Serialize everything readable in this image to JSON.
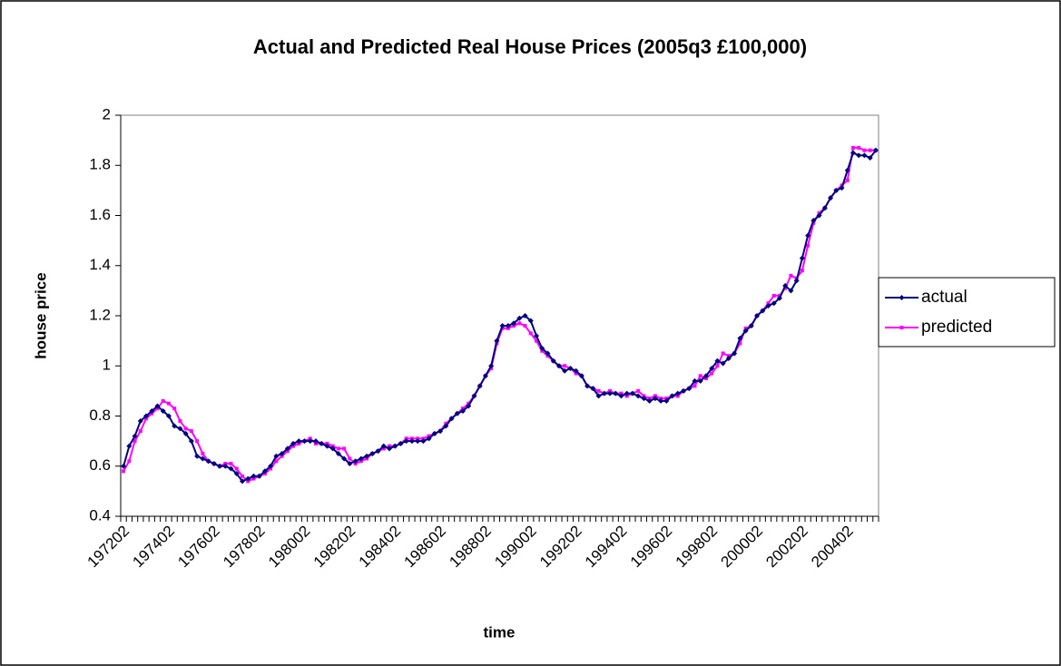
{
  "chart_data": {
    "type": "line",
    "title": "Actual and Predicted Real House Prices (2005q3 £100,000)",
    "x_label": "time",
    "y_label": "house price",
    "categories": [
      "197202",
      null,
      null,
      null,
      null,
      null,
      null,
      null,
      "197402",
      null,
      null,
      null,
      null,
      null,
      null,
      null,
      "197602",
      null,
      null,
      null,
      null,
      null,
      null,
      null,
      "197802",
      null,
      null,
      null,
      null,
      null,
      null,
      null,
      "198002",
      null,
      null,
      null,
      null,
      null,
      null,
      null,
      "198202",
      null,
      null,
      null,
      null,
      null,
      null,
      null,
      "198402",
      null,
      null,
      null,
      null,
      null,
      null,
      null,
      "198602",
      null,
      null,
      null,
      null,
      null,
      null,
      null,
      "198802",
      null,
      null,
      null,
      null,
      null,
      null,
      null,
      "199002",
      null,
      null,
      null,
      null,
      null,
      null,
      null,
      "199202",
      null,
      null,
      null,
      null,
      null,
      null,
      null,
      "199402",
      null,
      null,
      null,
      null,
      null,
      null,
      null,
      "199602",
      null,
      null,
      null,
      null,
      null,
      null,
      null,
      "199802",
      null,
      null,
      null,
      null,
      null,
      null,
      null,
      "200002",
      null,
      null,
      null,
      null,
      null,
      null,
      null,
      "200202",
      null,
      null,
      null,
      null,
      null,
      null,
      null,
      "200402",
      null,
      null,
      null,
      null,
      null
    ],
    "series": [
      {
        "name": "actual",
        "color": "#000080",
        "values": [
          0.6,
          0.68,
          0.72,
          0.78,
          0.8,
          0.82,
          0.84,
          0.82,
          0.8,
          0.76,
          0.75,
          0.73,
          0.7,
          0.64,
          0.63,
          0.62,
          0.61,
          0.6,
          0.6,
          0.59,
          0.57,
          0.54,
          0.55,
          0.56,
          0.56,
          0.58,
          0.6,
          0.64,
          0.65,
          0.67,
          0.69,
          0.7,
          0.7,
          0.7,
          0.7,
          0.69,
          0.68,
          0.67,
          0.65,
          0.63,
          0.61,
          0.62,
          0.63,
          0.64,
          0.65,
          0.66,
          0.68,
          0.67,
          0.68,
          0.69,
          0.7,
          0.7,
          0.7,
          0.7,
          0.71,
          0.73,
          0.74,
          0.76,
          0.79,
          0.81,
          0.82,
          0.84,
          0.88,
          0.92,
          0.96,
          1.0,
          1.1,
          1.16,
          1.16,
          1.17,
          1.19,
          1.2,
          1.18,
          1.12,
          1.07,
          1.05,
          1.02,
          1.0,
          0.98,
          0.99,
          0.98,
          0.96,
          0.92,
          0.91,
          0.88,
          0.89,
          0.89,
          0.89,
          0.88,
          0.89,
          0.89,
          0.88,
          0.87,
          0.86,
          0.87,
          0.86,
          0.86,
          0.88,
          0.89,
          0.9,
          0.91,
          0.94,
          0.94,
          0.96,
          0.99,
          1.02,
          1.01,
          1.03,
          1.05,
          1.11,
          1.14,
          1.16,
          1.2,
          1.22,
          1.24,
          1.25,
          1.27,
          1.32,
          1.3,
          1.34,
          1.43,
          1.52,
          1.58,
          1.6,
          1.63,
          1.67,
          1.7,
          1.71,
          1.78,
          1.85,
          1.84,
          1.84,
          1.83,
          1.86
        ]
      },
      {
        "name": "predicted",
        "color": "#ff00ff",
        "values": [
          0.58,
          0.62,
          0.7,
          0.74,
          0.79,
          0.81,
          0.83,
          0.86,
          0.85,
          0.83,
          0.78,
          0.75,
          0.74,
          0.7,
          0.65,
          0.62,
          0.61,
          0.6,
          0.61,
          0.61,
          0.59,
          0.56,
          0.54,
          0.55,
          0.56,
          0.57,
          0.59,
          0.62,
          0.64,
          0.66,
          0.68,
          0.69,
          0.7,
          0.71,
          0.69,
          0.69,
          0.69,
          0.68,
          0.67,
          0.67,
          0.63,
          0.61,
          0.62,
          0.63,
          0.65,
          0.66,
          0.67,
          0.68,
          0.68,
          0.69,
          0.71,
          0.71,
          0.71,
          0.71,
          0.72,
          0.73,
          0.74,
          0.77,
          0.79,
          0.81,
          0.83,
          0.85,
          0.88,
          0.92,
          0.96,
          0.99,
          1.09,
          1.15,
          1.15,
          1.16,
          1.17,
          1.16,
          1.13,
          1.1,
          1.06,
          1.04,
          1.02,
          1.0,
          1.0,
          0.99,
          0.97,
          0.96,
          0.92,
          0.91,
          0.9,
          0.89,
          0.9,
          0.89,
          0.89,
          0.88,
          0.89,
          0.9,
          0.88,
          0.87,
          0.88,
          0.87,
          0.87,
          0.88,
          0.88,
          0.9,
          0.91,
          0.92,
          0.96,
          0.95,
          0.97,
          1.0,
          1.05,
          1.04,
          1.05,
          1.09,
          1.15,
          1.16,
          1.2,
          1.22,
          1.25,
          1.28,
          1.28,
          1.31,
          1.36,
          1.35,
          1.38,
          1.48,
          1.57,
          1.61,
          1.63,
          1.67,
          1.7,
          1.72,
          1.74,
          1.87,
          1.87,
          1.86,
          1.86,
          1.86
        ]
      }
    ],
    "ylim": [
      0.4,
      2
    ],
    "yticks": [
      0.4,
      0.6,
      0.8,
      {
        "value": 1.0,
        "label": "1"
      },
      1.2,
      1.4,
      1.6,
      1.8,
      {
        "value": 2.0,
        "label": "2"
      }
    ],
    "legend": "right"
  }
}
